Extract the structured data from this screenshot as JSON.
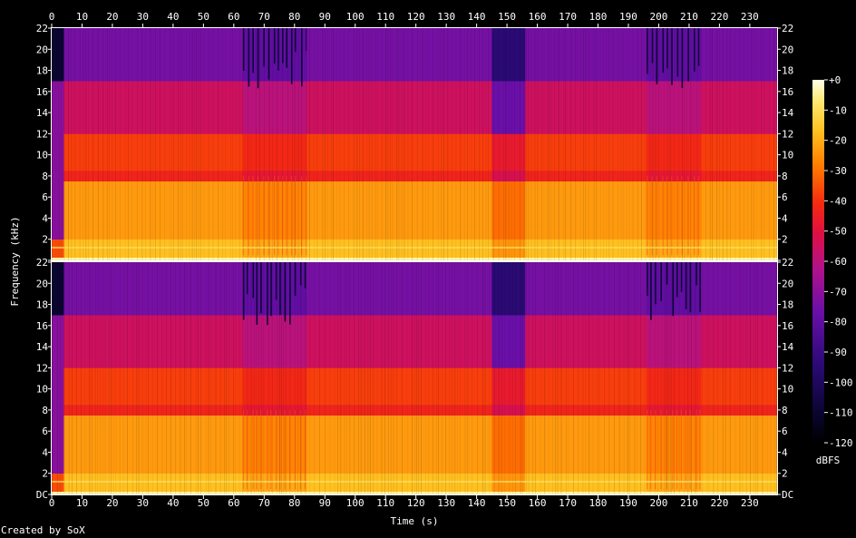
{
  "chart_data": {
    "type": "heatmap",
    "title": "",
    "xlabel": "Time (s)",
    "ylabel": "Frequency (kHz)",
    "x_ticks": [
      0,
      10,
      20,
      30,
      40,
      50,
      60,
      70,
      80,
      90,
      100,
      110,
      120,
      130,
      140,
      150,
      160,
      170,
      180,
      190,
      200,
      210,
      220,
      230
    ],
    "xlim": [
      0,
      239
    ],
    "y_ticks": [
      "DC",
      "2",
      "4",
      "6",
      "8",
      "10",
      "12",
      "14",
      "16",
      "18",
      "20",
      "22"
    ],
    "ylim_khz": [
      0,
      22
    ],
    "channels": [
      "Channel 1",
      "Channel 2"
    ],
    "colorbar": {
      "label": "dBFS",
      "ticks": [
        "+0",
        "-10",
        "-20",
        "-30",
        "-40",
        "-50",
        "-60",
        "-70",
        "-80",
        "-90",
        "-100",
        "-110",
        "-120"
      ],
      "range": [
        -120,
        0
      ]
    },
    "segments": [
      {
        "t_start": 0,
        "t_end": 4,
        "level": "silence"
      },
      {
        "t_start": 4,
        "t_end": 63,
        "level": "loud"
      },
      {
        "t_start": 63,
        "t_end": 84,
        "level": "pulsing"
      },
      {
        "t_start": 84,
        "t_end": 145,
        "level": "loud"
      },
      {
        "t_start": 145,
        "t_end": 156,
        "level": "quiet"
      },
      {
        "t_start": 156,
        "t_end": 196,
        "level": "loud"
      },
      {
        "t_start": 196,
        "t_end": 214,
        "level": "pulsing"
      },
      {
        "t_start": 214,
        "t_end": 239,
        "level": "loud"
      }
    ],
    "band_levels_db": [
      {
        "khz_from": 0,
        "khz_to": 2,
        "db": -25
      },
      {
        "khz_from": 2,
        "khz_to": 7.5,
        "db": -32
      },
      {
        "khz_from": 7.5,
        "khz_to": 8.5,
        "db": -52
      },
      {
        "khz_from": 8.5,
        "khz_to": 12,
        "db": -47
      },
      {
        "khz_from": 12,
        "khz_to": 17,
        "db": -62
      },
      {
        "khz_from": 17,
        "khz_to": 22,
        "db": -78
      }
    ]
  },
  "credit": "Created by SoX"
}
